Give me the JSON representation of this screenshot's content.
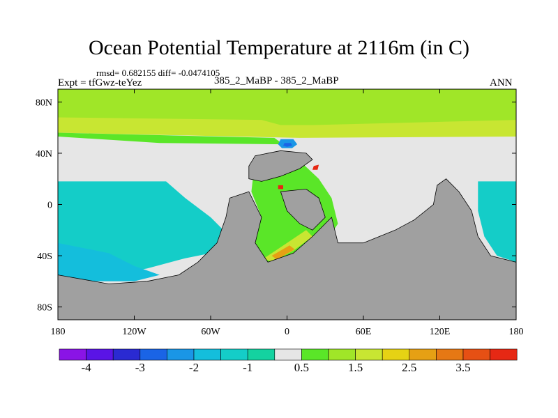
{
  "chart_data": {
    "type": "heatmap",
    "title": "Ocean Potential Temperature at 2116m (in C)",
    "stats": "rmsd= 0.682155  diff= -0.0474105",
    "expt": "Expt = tfGwz-teYez",
    "subtitle": "385_2_MaBP - 385_2_MaBP",
    "season": "ANN",
    "x_range": [
      -180,
      180
    ],
    "y_range": [
      -90,
      90
    ],
    "x_ticks": [
      {
        "value": -180,
        "label": "180"
      },
      {
        "value": -120,
        "label": "120W"
      },
      {
        "value": -60,
        "label": "60W"
      },
      {
        "value": 0,
        "label": "0"
      },
      {
        "value": 60,
        "label": "60E"
      },
      {
        "value": 120,
        "label": "120E"
      },
      {
        "value": 180,
        "label": "180"
      }
    ],
    "y_ticks": [
      {
        "value": 80,
        "label": "80N"
      },
      {
        "value": 40,
        "label": "40N"
      },
      {
        "value": 0,
        "label": "0"
      },
      {
        "value": -40,
        "label": "40S"
      },
      {
        "value": -80,
        "label": "80S"
      }
    ],
    "colorbar": {
      "colors": [
        "#8a14e6",
        "#5a14e6",
        "#2a2ad2",
        "#1a64e6",
        "#1a96e6",
        "#14bedc",
        "#14cdc8",
        "#14d2a0",
        "#e6e6e6",
        "#5ae628",
        "#a0e628",
        "#c8e632",
        "#e6d214",
        "#e6a014",
        "#e67814",
        "#e65014",
        "#e62814"
      ],
      "labels": [
        {
          "after_box": 1,
          "text": "-4"
        },
        {
          "after_box": 3,
          "text": "-3"
        },
        {
          "after_box": 5,
          "text": "-2"
        },
        {
          "after_box": 7,
          "text": "-1"
        },
        {
          "after_box": 9,
          "text": "0.5"
        },
        {
          "after_box": 11,
          "text": "1.5"
        },
        {
          "after_box": 13,
          "text": "2.5"
        },
        {
          "after_box": 15,
          "text": "3.5"
        }
      ]
    },
    "regions": [
      {
        "name": "arctic-positive-band",
        "value": 1.0,
        "color": "#a0e628",
        "poly": [
          [
            -180,
            90
          ],
          [
            180,
            90
          ],
          [
            180,
            62
          ],
          [
            40,
            62
          ],
          [
            10,
            58
          ],
          [
            -180,
            63
          ]
        ]
      },
      {
        "name": "high-latitude-band",
        "value": 1.5,
        "color": "#c8e632",
        "poly": [
          [
            -180,
            68
          ],
          [
            -20,
            66
          ],
          [
            -5,
            62
          ],
          [
            20,
            62
          ],
          [
            180,
            66
          ],
          [
            180,
            53
          ],
          [
            10,
            52
          ],
          [
            -180,
            56
          ]
        ]
      },
      {
        "name": "north-pacific-positive",
        "value": 0.8,
        "color": "#5ae628",
        "poly": [
          [
            -180,
            56
          ],
          [
            -10,
            52
          ],
          [
            -3,
            47
          ],
          [
            -100,
            48
          ],
          [
            -180,
            53
          ]
        ]
      },
      {
        "name": "north-atlantic-cold-spot",
        "value": -2.5,
        "color": "#1a96e6",
        "poly": [
          [
            -5,
            51
          ],
          [
            5,
            51
          ],
          [
            8,
            47
          ],
          [
            4,
            44
          ],
          [
            -4,
            44
          ],
          [
            -7,
            47
          ]
        ]
      },
      {
        "name": "north-atlantic-cold-core",
        "value": -3,
        "color": "#1a64e6",
        "poly": [
          [
            -2,
            48
          ],
          [
            3,
            48
          ],
          [
            4,
            46
          ],
          [
            0,
            45
          ],
          [
            -3,
            46
          ]
        ]
      },
      {
        "name": "south-pacific-cyan",
        "value": -1.2,
        "color": "#14cdc8",
        "poly": [
          [
            -180,
            18
          ],
          [
            -95,
            18
          ],
          [
            -80,
            5
          ],
          [
            -60,
            -10
          ],
          [
            -50,
            -20
          ],
          [
            -45,
            -35
          ],
          [
            -80,
            -42
          ],
          [
            -110,
            -50
          ],
          [
            -140,
            -55
          ],
          [
            -180,
            -55
          ]
        ]
      },
      {
        "name": "south-pacific-cold",
        "value": -1.7,
        "color": "#14bedc",
        "poly": [
          [
            -180,
            -30
          ],
          [
            -140,
            -38
          ],
          [
            -120,
            -48
          ],
          [
            -100,
            -55
          ],
          [
            -120,
            -60
          ],
          [
            -180,
            -60
          ]
        ]
      },
      {
        "name": "east-pacific-cyan",
        "value": -1.2,
        "color": "#14cdc8",
        "poly": [
          [
            150,
            18
          ],
          [
            180,
            18
          ],
          [
            180,
            -45
          ],
          [
            165,
            -40
          ],
          [
            155,
            -25
          ],
          [
            150,
            -5
          ]
        ]
      },
      {
        "name": "atlantic-corridor",
        "value": 1.0,
        "color": "#5ae628",
        "poly": [
          [
            -25,
            36
          ],
          [
            10,
            34
          ],
          [
            25,
            20
          ],
          [
            35,
            5
          ],
          [
            40,
            -15
          ],
          [
            30,
            -30
          ],
          [
            15,
            -40
          ],
          [
            -15,
            -45
          ],
          [
            -25,
            -30
          ],
          [
            -20,
            -10
          ],
          [
            -28,
            10
          ]
        ]
      },
      {
        "name": "atlantic-warm-streak",
        "value": 2.0,
        "color": "#c8e632",
        "poly": [
          [
            -18,
            -42
          ],
          [
            0,
            -30
          ],
          [
            15,
            -20
          ],
          [
            20,
            -25
          ],
          [
            5,
            -36
          ],
          [
            -12,
            -45
          ]
        ]
      },
      {
        "name": "south-atlantic-warm",
        "value": 2.5,
        "color": "#e6a014",
        "poly": [
          [
            -12,
            -40
          ],
          [
            2,
            -32
          ],
          [
            6,
            -35
          ],
          [
            -8,
            -43
          ]
        ]
      },
      {
        "name": "red-spot-north",
        "value": 3.8,
        "color": "#e62814",
        "poly": [
          [
            21,
            30
          ],
          [
            25,
            31
          ],
          [
            24,
            27
          ],
          [
            20,
            27
          ]
        ]
      },
      {
        "name": "red-spot-west",
        "value": 3.8,
        "color": "#e62814",
        "poly": [
          [
            -7,
            15
          ],
          [
            -3,
            15
          ],
          [
            -3,
            12
          ],
          [
            -7,
            12
          ]
        ]
      }
    ],
    "land": [
      {
        "name": "antarctic-and-south-pacific-land",
        "poly": [
          [
            -180,
            -55
          ],
          [
            -140,
            -62
          ],
          [
            -110,
            -60
          ],
          [
            -85,
            -55
          ],
          [
            -70,
            -45
          ],
          [
            -55,
            -30
          ],
          [
            -48,
            -10
          ],
          [
            -45,
            5
          ],
          [
            -30,
            10
          ],
          [
            -20,
            -10
          ],
          [
            -25,
            -30
          ],
          [
            -15,
            -45
          ],
          [
            5,
            -38
          ],
          [
            20,
            -25
          ],
          [
            35,
            -10
          ],
          [
            40,
            -30
          ],
          [
            60,
            -30
          ],
          [
            85,
            -20
          ],
          [
            100,
            -12
          ],
          [
            115,
            0
          ],
          [
            118,
            15
          ],
          [
            125,
            20
          ],
          [
            135,
            10
          ],
          [
            145,
            -5
          ],
          [
            150,
            -25
          ],
          [
            160,
            -40
          ],
          [
            180,
            -45
          ],
          [
            180,
            -90
          ],
          [
            -180,
            -90
          ]
        ]
      },
      {
        "name": "central-continent",
        "poly": [
          [
            -30,
            30
          ],
          [
            -25,
            38
          ],
          [
            -5,
            42
          ],
          [
            15,
            40
          ],
          [
            20,
            35
          ],
          [
            10,
            28
          ],
          [
            -5,
            22
          ],
          [
            -20,
            18
          ],
          [
            -30,
            20
          ]
        ]
      },
      {
        "name": "africa-like-continent",
        "poly": [
          [
            -5,
            10
          ],
          [
            15,
            12
          ],
          [
            25,
            5
          ],
          [
            30,
            -10
          ],
          [
            20,
            -20
          ],
          [
            10,
            -15
          ],
          [
            0,
            -5
          ]
        ]
      }
    ],
    "background": "#e6e6e6",
    "land_color": "#a0a0a0"
  }
}
